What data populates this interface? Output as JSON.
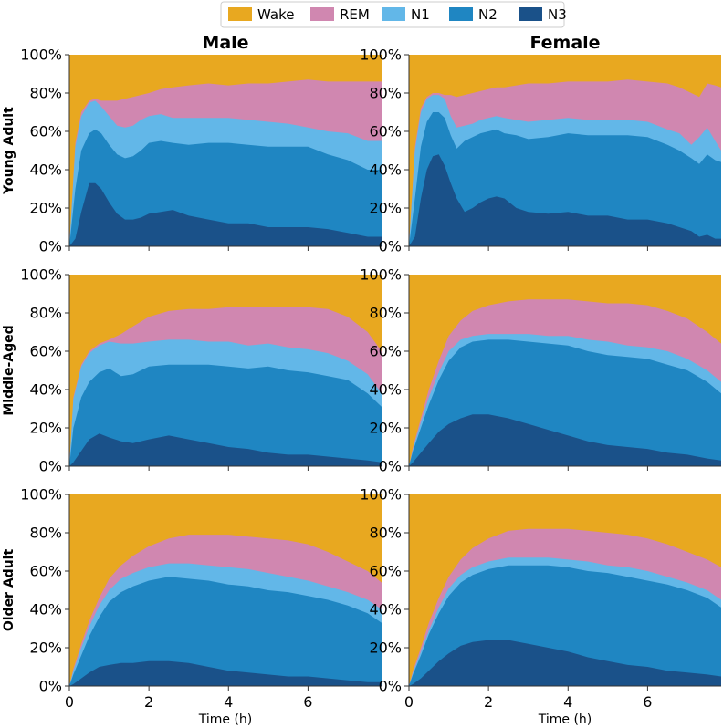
{
  "chart_data": {
    "type": "area",
    "stacked": true,
    "layout": "3x2 grid",
    "x_label": "Time (h)",
    "x_ticks": [
      0,
      2,
      4,
      6
    ],
    "xlim": [
      0,
      7.85
    ],
    "ylim": [
      0,
      100
    ],
    "y_ticks": [
      "0%",
      "20%",
      "40%",
      "60%",
      "80%",
      "100%"
    ],
    "y_tick_values": [
      0,
      20,
      40,
      60,
      80,
      100
    ],
    "legend": {
      "position": "top-center",
      "entries": [
        "Wake",
        "REM",
        "N1",
        "N2",
        "N3"
      ]
    },
    "series_colors": {
      "Wake": "#e8a820",
      "REM": "#d087b0",
      "N1": "#62b7e8",
      "N2": "#1f86c2",
      "N3": "#1a5189"
    },
    "stack_order_bottom_to_top": [
      "N3",
      "N2",
      "N1",
      "REM",
      "Wake"
    ],
    "column_titles": [
      "Male",
      "Female"
    ],
    "row_titles": [
      "Young Adult",
      "Middle-Aged",
      "Older Adult"
    ],
    "panels": [
      {
        "row": "Young Adult",
        "col": "Male",
        "x": [
          0,
          0.15,
          0.3,
          0.5,
          0.65,
          0.8,
          1.0,
          1.2,
          1.4,
          1.6,
          1.8,
          2.0,
          2.3,
          2.6,
          3.0,
          3.5,
          4.0,
          4.5,
          5.0,
          5.5,
          6.0,
          6.5,
          7.0,
          7.5,
          7.85
        ],
        "cumulative_tops": {
          "N3": [
            0,
            4,
            18,
            33,
            33,
            30,
            23,
            17,
            14,
            14,
            15,
            17,
            18,
            19,
            16,
            14,
            12,
            12,
            10,
            10,
            10,
            9,
            7,
            5,
            5
          ],
          "N2": [
            0,
            30,
            50,
            59,
            61,
            59,
            53,
            48,
            46,
            47,
            50,
            54,
            55,
            54,
            53,
            54,
            54,
            53,
            52,
            52,
            52,
            48,
            45,
            40,
            40
          ],
          "N1": [
            0,
            52,
            68,
            75,
            76,
            73,
            68,
            63,
            62,
            63,
            66,
            68,
            69,
            67,
            67,
            67,
            67,
            66,
            65,
            64,
            62,
            60,
            59,
            55,
            55
          ],
          "REM": [
            0,
            54,
            70,
            76,
            77,
            76,
            76,
            76,
            77,
            78,
            79,
            80,
            82,
            83,
            84,
            85,
            84,
            85,
            85,
            86,
            87,
            86,
            86,
            86,
            86
          ]
        }
      },
      {
        "row": "Young Adult",
        "col": "Female",
        "x": [
          0,
          0.15,
          0.3,
          0.45,
          0.6,
          0.75,
          0.9,
          1.05,
          1.2,
          1.4,
          1.6,
          1.8,
          2.0,
          2.2,
          2.4,
          2.7,
          3.0,
          3.5,
          4.0,
          4.5,
          5.0,
          5.5,
          6.0,
          6.5,
          6.8,
          7.1,
          7.3,
          7.5,
          7.7,
          7.85
        ],
        "cumulative_tops": {
          "N3": [
            0,
            5,
            25,
            40,
            47,
            48,
            42,
            33,
            25,
            18,
            20,
            23,
            25,
            26,
            25,
            20,
            18,
            17,
            18,
            16,
            16,
            14,
            14,
            12,
            10,
            8,
            5,
            6,
            4,
            4
          ],
          "N2": [
            0,
            25,
            52,
            65,
            70,
            70,
            67,
            58,
            51,
            55,
            57,
            59,
            60,
            61,
            59,
            58,
            56,
            57,
            59,
            58,
            58,
            58,
            57,
            53,
            50,
            46,
            43,
            48,
            45,
            44
          ],
          "N1": [
            0,
            50,
            70,
            77,
            79,
            79,
            77,
            68,
            62,
            63,
            64,
            66,
            67,
            68,
            67,
            66,
            65,
            66,
            67,
            66,
            66,
            66,
            65,
            61,
            59,
            53,
            57,
            62,
            55,
            50
          ],
          "REM": [
            0,
            52,
            72,
            78,
            80,
            80,
            79,
            79,
            78,
            79,
            80,
            81,
            82,
            83,
            83,
            84,
            85,
            85,
            86,
            86,
            86,
            87,
            86,
            85,
            83,
            80,
            78,
            85,
            84,
            83
          ]
        }
      },
      {
        "row": "Middle-Aged",
        "col": "Male",
        "x": [
          0,
          0.1,
          0.3,
          0.5,
          0.75,
          1.0,
          1.3,
          1.6,
          2.0,
          2.5,
          3.0,
          3.5,
          4.0,
          4.5,
          5.0,
          5.5,
          6.0,
          6.5,
          7.0,
          7.5,
          7.85
        ],
        "cumulative_tops": {
          "N3": [
            0,
            2,
            8,
            14,
            17,
            15,
            13,
            12,
            14,
            16,
            14,
            12,
            10,
            9,
            7,
            6,
            6,
            5,
            4,
            3,
            2
          ],
          "N2": [
            0,
            20,
            36,
            44,
            49,
            51,
            47,
            48,
            52,
            53,
            53,
            53,
            52,
            51,
            52,
            50,
            49,
            47,
            45,
            38,
            31
          ],
          "N1": [
            0,
            35,
            52,
            59,
            63,
            65,
            64,
            64,
            65,
            66,
            66,
            65,
            65,
            63,
            64,
            62,
            61,
            59,
            55,
            48,
            38
          ],
          "REM": [
            0,
            36,
            53,
            60,
            64,
            66,
            69,
            73,
            78,
            81,
            82,
            82,
            83,
            83,
            83,
            83,
            83,
            82,
            78,
            70,
            60
          ]
        }
      },
      {
        "row": "Middle-Aged",
        "col": "Female",
        "x": [
          0,
          0.1,
          0.3,
          0.5,
          0.75,
          1.0,
          1.3,
          1.6,
          2.0,
          2.5,
          3.0,
          3.5,
          4.0,
          4.5,
          5.0,
          5.5,
          6.0,
          6.5,
          7.0,
          7.5,
          7.85
        ],
        "cumulative_tops": {
          "N3": [
            0,
            2,
            7,
            12,
            18,
            22,
            25,
            27,
            27,
            25,
            22,
            19,
            16,
            13,
            11,
            10,
            9,
            7,
            6,
            4,
            3
          ],
          "N2": [
            0,
            8,
            20,
            32,
            45,
            55,
            62,
            65,
            66,
            66,
            65,
            64,
            63,
            60,
            58,
            57,
            56,
            53,
            50,
            44,
            38
          ],
          "N1": [
            0,
            9,
            23,
            36,
            49,
            60,
            66,
            68,
            69,
            69,
            69,
            68,
            68,
            66,
            65,
            63,
            62,
            60,
            56,
            50,
            44
          ],
          "REM": [
            0,
            10,
            25,
            40,
            55,
            68,
            76,
            81,
            84,
            86,
            87,
            87,
            87,
            86,
            85,
            85,
            84,
            81,
            77,
            70,
            64
          ]
        }
      },
      {
        "row": "Older Adult",
        "col": "Male",
        "x": [
          0,
          0.1,
          0.3,
          0.5,
          0.75,
          1.0,
          1.3,
          1.6,
          2.0,
          2.5,
          3.0,
          3.5,
          4.0,
          4.5,
          5.0,
          5.5,
          6.0,
          6.5,
          7.0,
          7.5,
          7.85
        ],
        "cumulative_tops": {
          "N3": [
            0,
            1,
            4,
            7,
            10,
            11,
            12,
            12,
            13,
            13,
            12,
            10,
            8,
            7,
            6,
            5,
            5,
            4,
            3,
            2,
            2
          ],
          "N2": [
            0,
            6,
            16,
            26,
            36,
            44,
            49,
            52,
            55,
            57,
            56,
            55,
            53,
            52,
            50,
            49,
            47,
            45,
            42,
            38,
            33
          ],
          "N1": [
            0,
            8,
            20,
            31,
            42,
            50,
            56,
            59,
            62,
            64,
            64,
            63,
            62,
            61,
            59,
            57,
            55,
            52,
            49,
            45,
            40
          ],
          "REM": [
            0,
            9,
            22,
            34,
            46,
            56,
            63,
            68,
            73,
            77,
            79,
            79,
            79,
            78,
            77,
            76,
            74,
            70,
            65,
            60,
            54
          ]
        }
      },
      {
        "row": "Older Adult",
        "col": "Female",
        "x": [
          0,
          0.1,
          0.3,
          0.5,
          0.75,
          1.0,
          1.3,
          1.6,
          2.0,
          2.5,
          3.0,
          3.5,
          4.0,
          4.5,
          5.0,
          5.5,
          6.0,
          6.5,
          7.0,
          7.5,
          7.85
        ],
        "cumulative_tops": {
          "N3": [
            0,
            1,
            4,
            8,
            13,
            17,
            21,
            23,
            24,
            24,
            22,
            20,
            18,
            15,
            13,
            11,
            10,
            8,
            7,
            6,
            5
          ],
          "N2": [
            0,
            6,
            16,
            27,
            38,
            47,
            54,
            58,
            61,
            63,
            63,
            63,
            62,
            60,
            59,
            57,
            55,
            53,
            50,
            46,
            41
          ],
          "N1": [
            0,
            7,
            18,
            29,
            41,
            51,
            58,
            62,
            65,
            67,
            67,
            67,
            66,
            65,
            63,
            62,
            60,
            57,
            54,
            50,
            45
          ],
          "REM": [
            0,
            8,
            20,
            33,
            46,
            57,
            66,
            72,
            77,
            81,
            82,
            82,
            82,
            81,
            80,
            79,
            77,
            74,
            70,
            66,
            62
          ]
        }
      }
    ]
  }
}
